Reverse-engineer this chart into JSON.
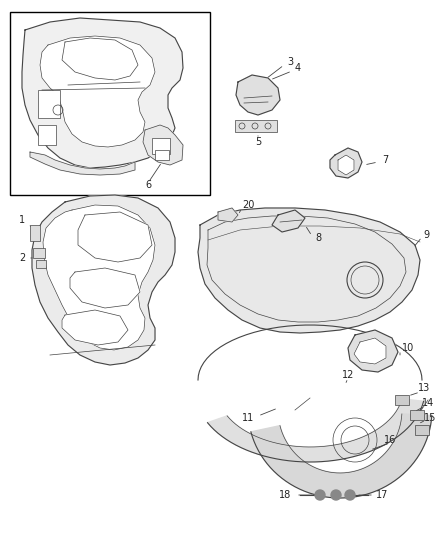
{
  "bg_color": "#ffffff",
  "fig_width": 4.38,
  "fig_height": 5.33,
  "dpi": 100,
  "line_color": "#444444",
  "lw_main": 0.8,
  "lw_thin": 0.5,
  "label_fontsize": 7.0,
  "label_color": "#222222"
}
